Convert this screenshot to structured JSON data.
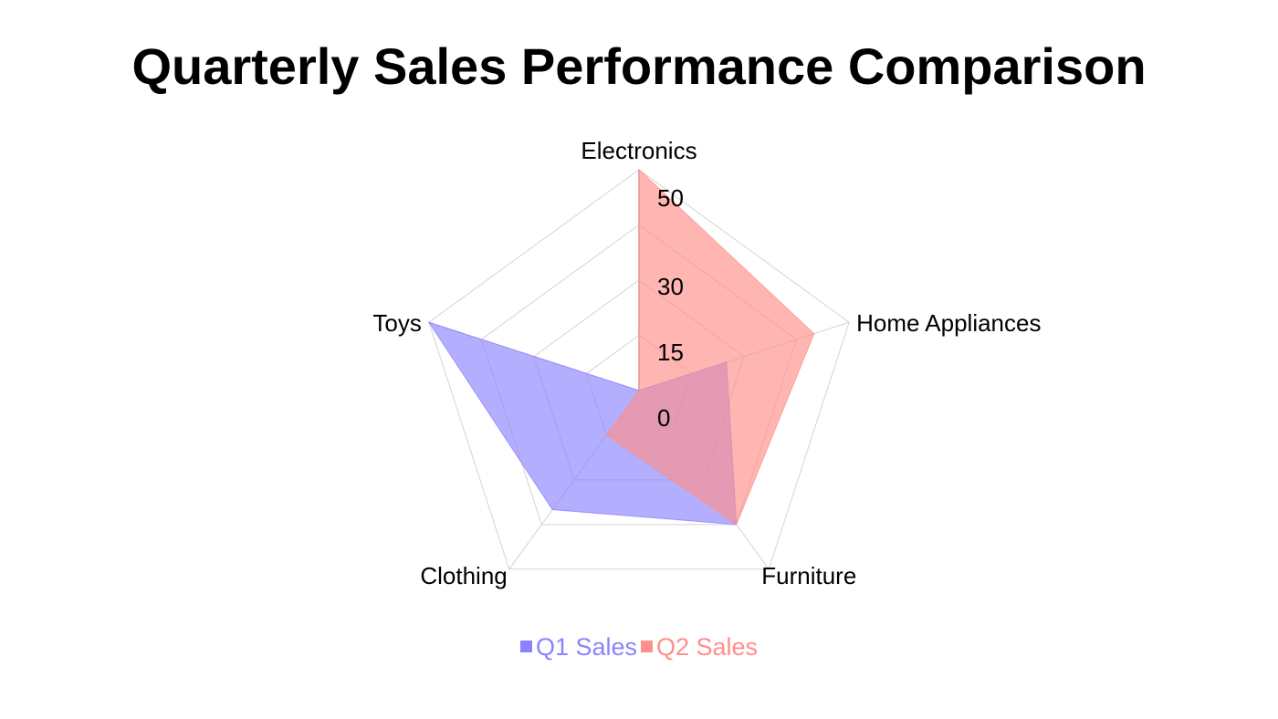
{
  "chart_data": {
    "type": "radar",
    "title": "Quarterly Sales Performance Comparison",
    "categories": [
      "Electronics",
      "Home Appliances",
      "Furniture",
      "Clothing",
      "Toys"
    ],
    "rlim": [
      0,
      60
    ],
    "radial_ticks": [
      0,
      15,
      30,
      50
    ],
    "grid_levels": [
      0,
      15,
      30,
      45,
      60
    ],
    "series": [
      {
        "name": "Q1 Sales",
        "values": [
          0,
          25,
          45,
          40,
          60
        ],
        "color": "#8c82ff",
        "opacity": 0.65
      },
      {
        "name": "Q2 Sales",
        "values": [
          60,
          50,
          45,
          15,
          0
        ],
        "color": "#ff8f8a",
        "opacity": 0.65
      }
    ],
    "grid": true,
    "legend_position": "bottom"
  }
}
